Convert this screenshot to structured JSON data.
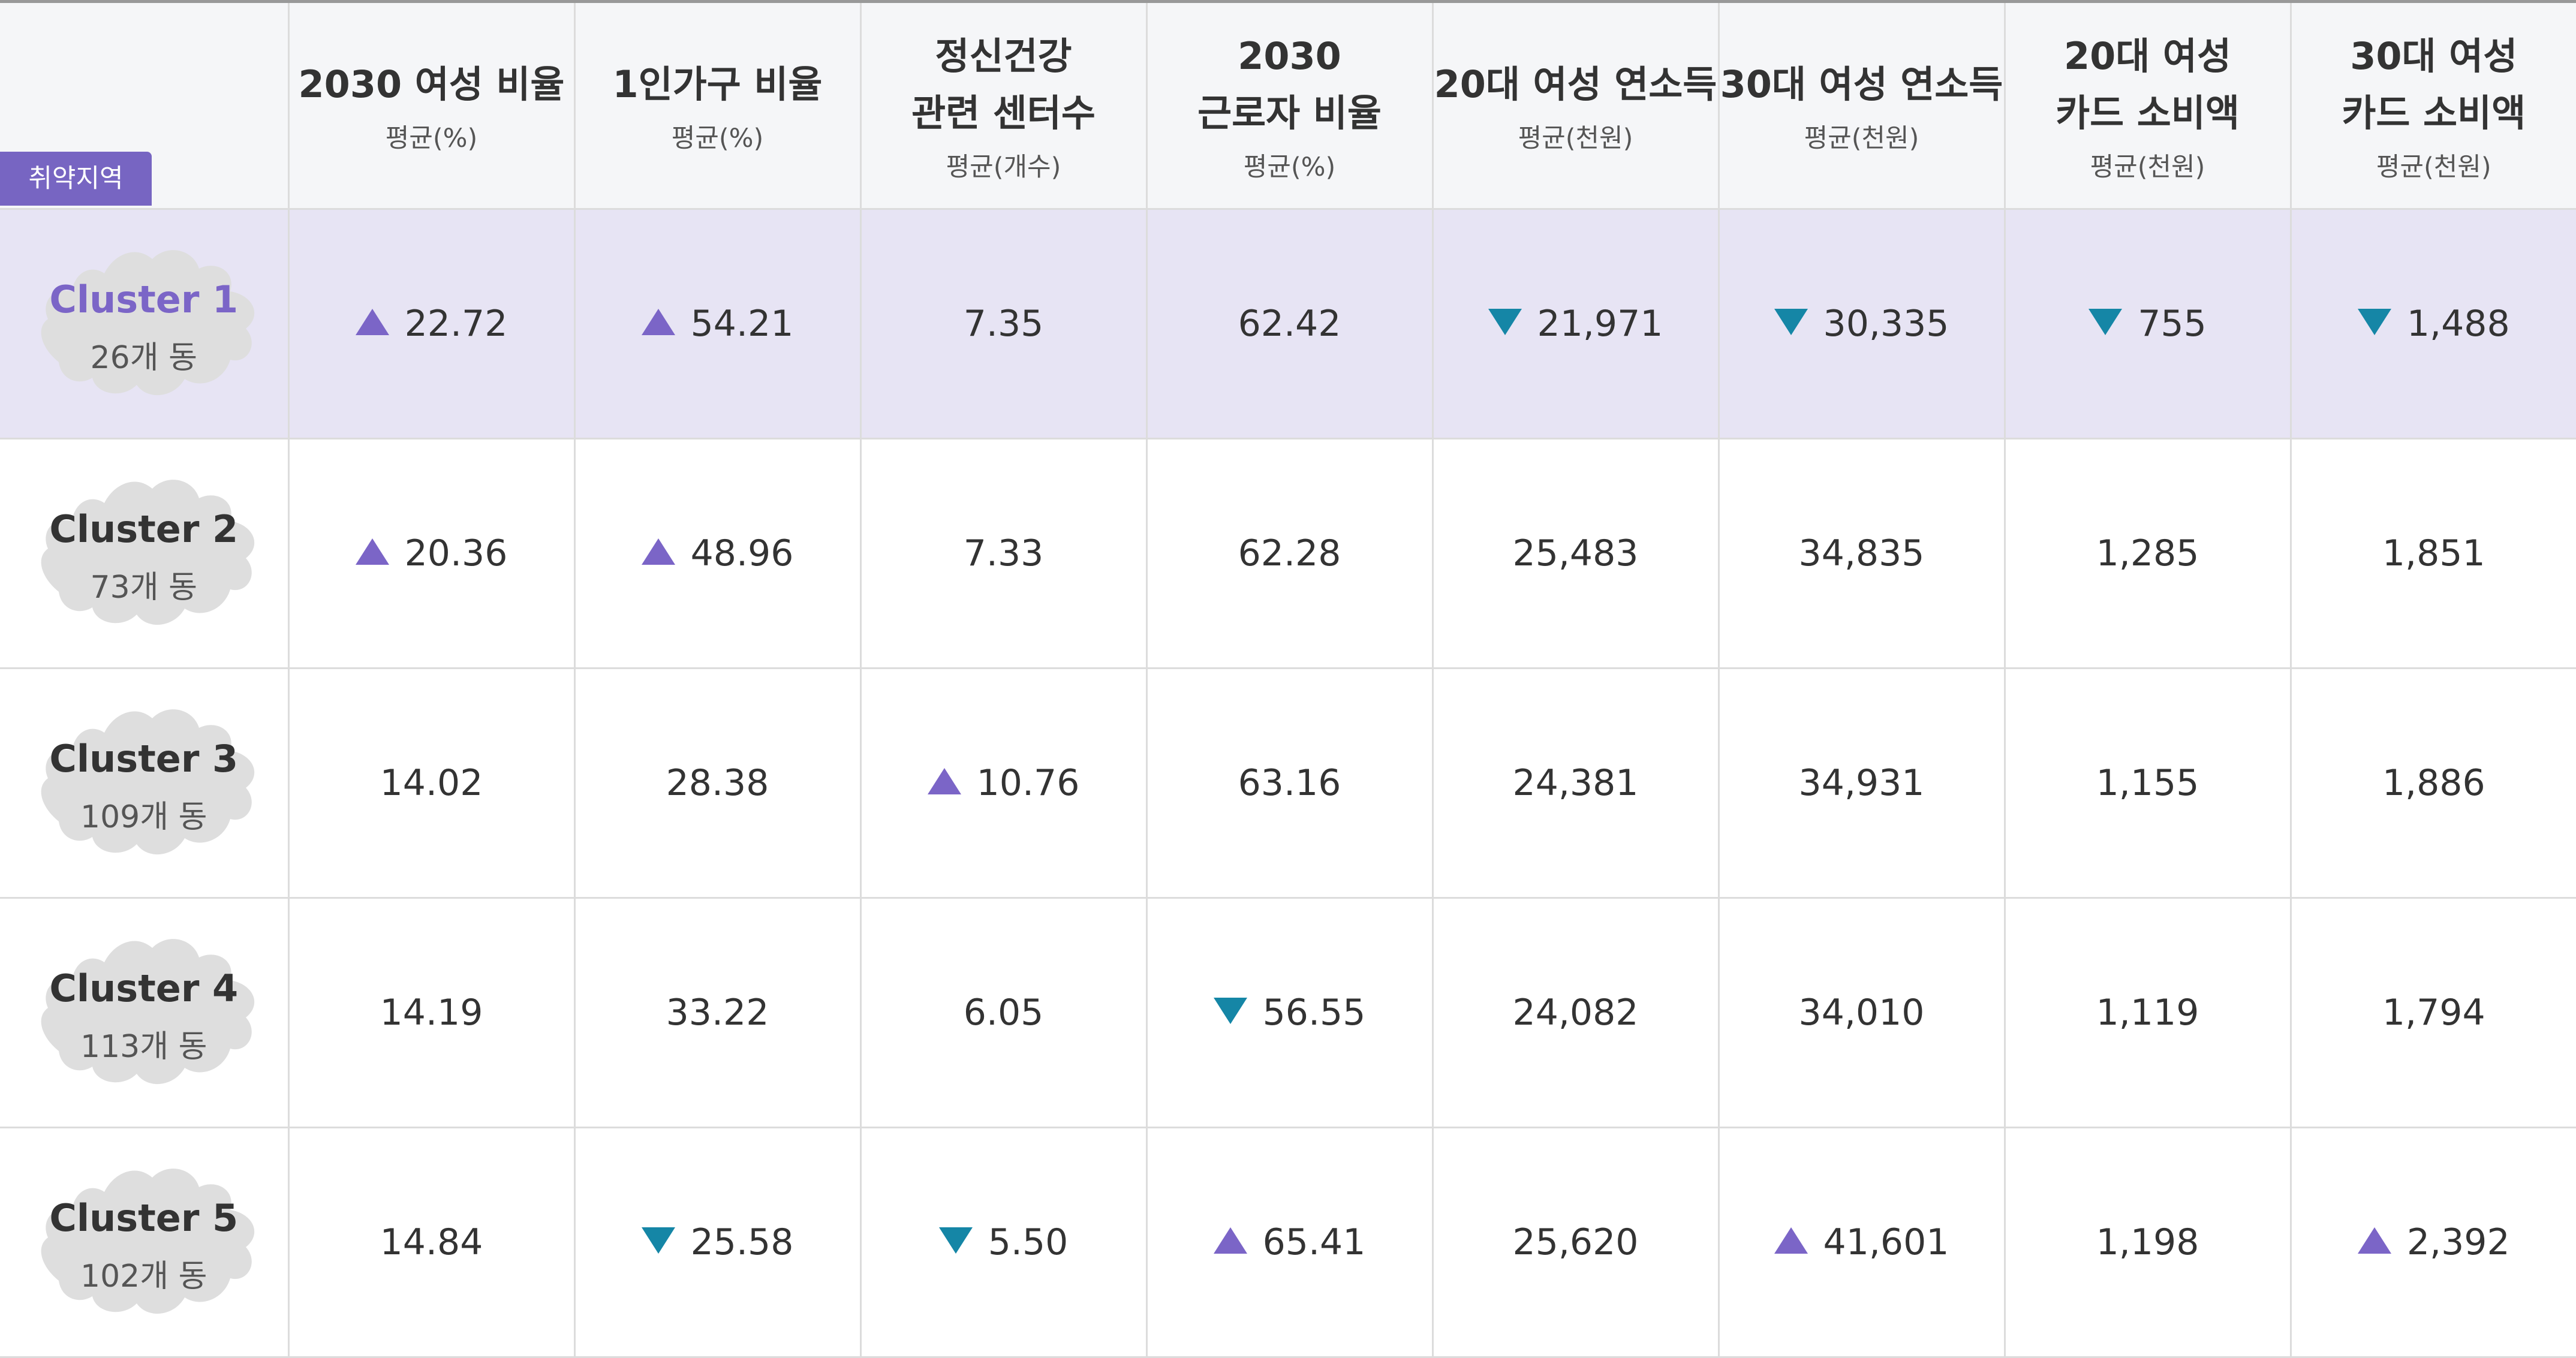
{
  "table": {
    "badge": "취약지역",
    "headers": [
      {
        "title1": "2030 여성 비율",
        "title2": "",
        "sub": "평균(%)"
      },
      {
        "title1": "1인가구 비율",
        "title2": "",
        "sub": "평균(%)"
      },
      {
        "title1": "정신건강",
        "title2": "관련 센터수",
        "sub": "평균(개수)"
      },
      {
        "title1": "2030",
        "title2": "근로자 비율",
        "sub": "평균(%)"
      },
      {
        "title1": "20대 여성 연소득",
        "title2": "",
        "sub": "평균(천원)"
      },
      {
        "title1": "30대 여성 연소득",
        "title2": "",
        "sub": "평균(천원)"
      },
      {
        "title1": "20대 여성",
        "title2": "카드 소비액",
        "sub": "평균(천원)"
      },
      {
        "title1": "30대 여성",
        "title2": "카드 소비액",
        "sub": "평균(천원)"
      }
    ],
    "rows": [
      {
        "name": "Cluster 1",
        "count": "26개 동",
        "highlight": true,
        "cells": [
          {
            "value": "22.72",
            "trend": "up"
          },
          {
            "value": "54.21",
            "trend": "up"
          },
          {
            "value": "7.35",
            "trend": ""
          },
          {
            "value": "62.42",
            "trend": ""
          },
          {
            "value": "21,971",
            "trend": "down"
          },
          {
            "value": "30,335",
            "trend": "down"
          },
          {
            "value": "755",
            "trend": "down"
          },
          {
            "value": "1,488",
            "trend": "down"
          }
        ]
      },
      {
        "name": "Cluster 2",
        "count": "73개 동",
        "highlight": false,
        "cells": [
          {
            "value": "20.36",
            "trend": "up"
          },
          {
            "value": "48.96",
            "trend": "up"
          },
          {
            "value": "7.33",
            "trend": ""
          },
          {
            "value": "62.28",
            "trend": ""
          },
          {
            "value": "25,483",
            "trend": ""
          },
          {
            "value": "34,835",
            "trend": ""
          },
          {
            "value": "1,285",
            "trend": ""
          },
          {
            "value": "1,851",
            "trend": ""
          }
        ]
      },
      {
        "name": "Cluster 3",
        "count": "109개 동",
        "highlight": false,
        "cells": [
          {
            "value": "14.02",
            "trend": ""
          },
          {
            "value": "28.38",
            "trend": ""
          },
          {
            "value": "10.76",
            "trend": "up"
          },
          {
            "value": "63.16",
            "trend": ""
          },
          {
            "value": "24,381",
            "trend": ""
          },
          {
            "value": "34,931",
            "trend": ""
          },
          {
            "value": "1,155",
            "trend": ""
          },
          {
            "value": "1,886",
            "trend": ""
          }
        ]
      },
      {
        "name": "Cluster 4",
        "count": "113개 동",
        "highlight": false,
        "cells": [
          {
            "value": "14.19",
            "trend": ""
          },
          {
            "value": "33.22",
            "trend": ""
          },
          {
            "value": "6.05",
            "trend": ""
          },
          {
            "value": "56.55",
            "trend": "down"
          },
          {
            "value": "24,082",
            "trend": ""
          },
          {
            "value": "34,010",
            "trend": ""
          },
          {
            "value": "1,119",
            "trend": ""
          },
          {
            "value": "1,794",
            "trend": ""
          }
        ]
      },
      {
        "name": "Cluster 5",
        "count": "102개 동",
        "highlight": false,
        "cells": [
          {
            "value": "14.84",
            "trend": ""
          },
          {
            "value": "25.58",
            "trend": "down"
          },
          {
            "value": "5.50",
            "trend": "down"
          },
          {
            "value": "65.41",
            "trend": "up"
          },
          {
            "value": "25,620",
            "trend": ""
          },
          {
            "value": "41,601",
            "trend": "up"
          },
          {
            "value": "1,198",
            "trend": ""
          },
          {
            "value": "2,392",
            "trend": "up"
          }
        ]
      }
    ]
  },
  "colors": {
    "up_arrow": "#7b65c7",
    "down_arrow": "#1586a6",
    "highlight_row": "#e7e4f4",
    "header_bg": "#f5f6f8",
    "badge_bg": "#7765c2",
    "map_fill": "#dedede",
    "accent_text": "#7b65c7"
  },
  "icons": {
    "up": "triangle-up-icon",
    "down": "triangle-down-icon",
    "map": "seoul-map-icon"
  }
}
